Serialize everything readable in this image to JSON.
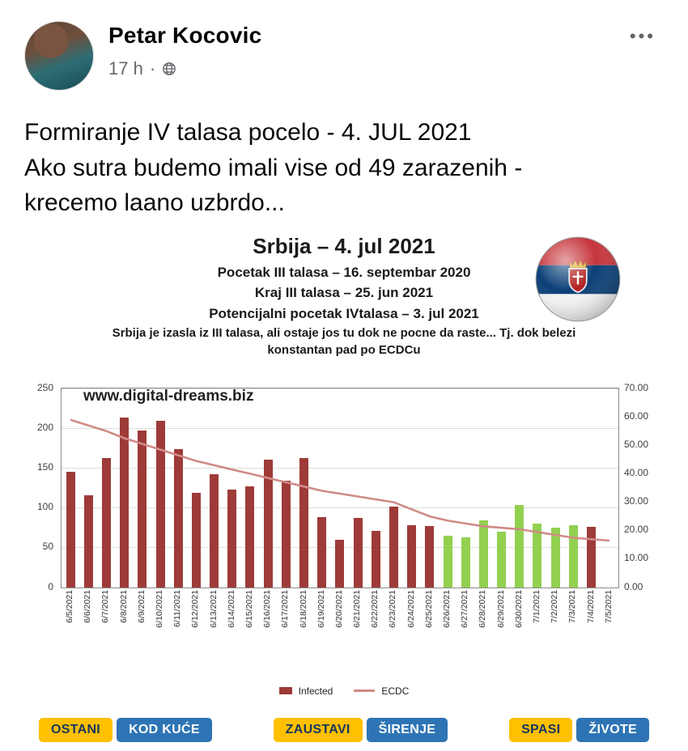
{
  "post": {
    "author": "Petar Kocovic",
    "timestamp": "17 h",
    "meta_separator": "·",
    "menu_label": "•••",
    "body_lines": [
      "Formiranje IV talasa pocelo - 4. JUL 2021",
      "Ako sutra budemo imali vise od 49 zarazenih -",
      "krecemo laano uzbrdo..."
    ]
  },
  "infographic": {
    "title": "Srbija – 4. jul 2021",
    "subtitle_lines": [
      "Pocetak III talasa – 16. septembar 2020",
      "Kraj III talasa – 25. jun 2021",
      "Potencijalni pocetak IVtalasa – 3. jul 2021"
    ],
    "note_lines": [
      "Srbija je izasla iz III talasa, ali ostaje jos tu dok ne pocne da raste... Tj. dok belezi",
      "konstantan pad po ECDCu"
    ],
    "watermark": "www.digital-dreams.biz",
    "flag_colors": {
      "red": "#c6363c",
      "blue": "#0c4077",
      "white": "#f5f5f5",
      "crest_gold": "#e8b93e",
      "crest_red": "#b22222"
    },
    "slogan_buttons": [
      {
        "yellow": "OSTANI",
        "blue": "KOD KUĆE"
      },
      {
        "yellow": "ZAUSTAVI",
        "blue": "ŠIRENJE"
      },
      {
        "yellow": "SPASI",
        "blue": "ŽIVOTE"
      }
    ],
    "button_colors": {
      "yellow_bg": "#ffc000",
      "yellow_text": "#17365d",
      "blue_bg": "#2e74b5",
      "blue_text": "#ffffff"
    }
  },
  "chart_data": {
    "type": "bar",
    "title": "Srbija – 4. jul 2021",
    "categories": [
      "6/5/2021",
      "6/6/2021",
      "6/7/2021",
      "6/8/2021",
      "6/9/2021",
      "6/10/2021",
      "6/11/2021",
      "6/12/2021",
      "6/13/2021",
      "6/14/2021",
      "6/15/2021",
      "6/16/2021",
      "6/17/2021",
      "6/18/2021",
      "6/19/2021",
      "6/20/2021",
      "6/21/2021",
      "6/22/2021",
      "6/23/2021",
      "6/24/2021",
      "6/25/2021",
      "6/26/2021",
      "6/27/2021",
      "6/28/2021",
      "6/29/2021",
      "6/30/2021",
      "7/1/2021",
      "7/2/2021",
      "7/3/2021",
      "7/4/2021",
      "7/5/2021"
    ],
    "series": [
      {
        "name": "Infected",
        "type": "bar",
        "axis": "left",
        "values": [
          145,
          115,
          162,
          213,
          197,
          209,
          173,
          118,
          142,
          123,
          127,
          160,
          134,
          162,
          88,
          60,
          87,
          71,
          101,
          78,
          77,
          65,
          63,
          84,
          70,
          103,
          80,
          75,
          78,
          76,
          0
        ]
      },
      {
        "name": "ECDC",
        "type": "line",
        "axis": "right",
        "values": [
          59,
          57,
          55,
          52.5,
          50.5,
          48.5,
          46.5,
          44.5,
          43,
          41.5,
          40,
          38.5,
          37,
          35.5,
          34,
          33,
          32,
          31,
          30,
          27.5,
          25,
          23.5,
          22.5,
          21.5,
          21,
          20.5,
          19.5,
          18.5,
          17.5,
          17,
          16.5
        ]
      }
    ],
    "bar_colors": [
      "red",
      "red",
      "red",
      "red",
      "red",
      "red",
      "red",
      "red",
      "red",
      "red",
      "red",
      "red",
      "red",
      "red",
      "red",
      "red",
      "red",
      "red",
      "red",
      "red",
      "red",
      "green",
      "green",
      "green",
      "green",
      "green",
      "green",
      "green",
      "green",
      "red",
      "red"
    ],
    "red_color": "#9e3b38",
    "green_color": "#92d050",
    "line_color": "#d08a87",
    "left_axis": {
      "min": 0,
      "max": 250,
      "ticks": [
        0,
        50,
        100,
        150,
        200,
        250
      ]
    },
    "right_axis": {
      "min": 0,
      "max": 70,
      "tick_labels": [
        "0.00",
        "10.00",
        "20.00",
        "30.00",
        "40.00",
        "50.00",
        "60.00",
        "70.00"
      ]
    },
    "legend": [
      "Infected",
      "ECDC"
    ],
    "legend_position": "bottom",
    "grid": true
  }
}
